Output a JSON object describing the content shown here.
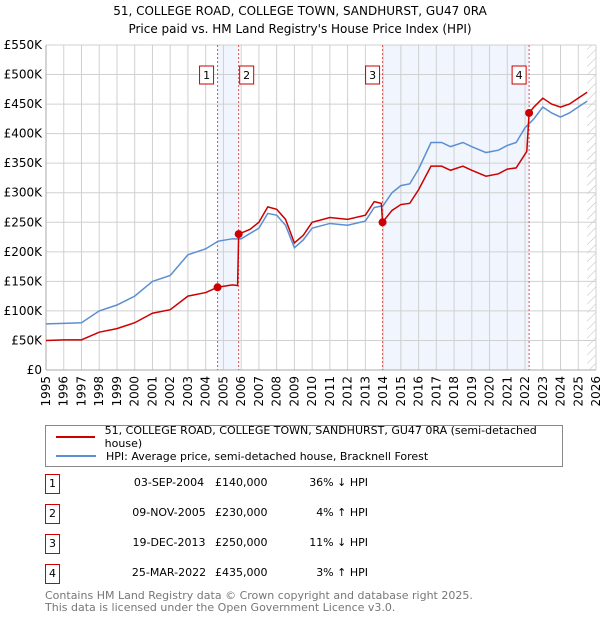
{
  "chart_data": {
    "type": "line",
    "title": "51, COLLEGE ROAD, COLLEGE TOWN, SANDHURST, GU47 0RA",
    "subtitle": "Price paid vs. HM Land Registry's House Price Index (HPI)",
    "xlim": [
      1995,
      2026
    ],
    "ylim": [
      0,
      550000
    ],
    "x_ticks": [
      "1995",
      "1996",
      "1997",
      "1998",
      "1999",
      "2000",
      "2001",
      "2002",
      "2003",
      "2004",
      "2005",
      "2006",
      "2007",
      "2008",
      "2009",
      "2010",
      "2011",
      "2012",
      "2013",
      "2014",
      "2015",
      "2016",
      "2017",
      "2018",
      "2019",
      "2020",
      "2021",
      "2022",
      "2023",
      "2024",
      "2025",
      "2026"
    ],
    "y_ticks": [
      {
        "v": 0,
        "label": "£0"
      },
      {
        "v": 50000,
        "label": "£50K"
      },
      {
        "v": 100000,
        "label": "£100K"
      },
      {
        "v": 150000,
        "label": "£150K"
      },
      {
        "v": 200000,
        "label": "£200K"
      },
      {
        "v": 250000,
        "label": "£250K"
      },
      {
        "v": 300000,
        "label": "£300K"
      },
      {
        "v": 350000,
        "label": "£350K"
      },
      {
        "v": 400000,
        "label": "£400K"
      },
      {
        "v": 450000,
        "label": "£450K"
      },
      {
        "v": 500000,
        "label": "£500K"
      },
      {
        "v": 550000,
        "label": "£550K"
      }
    ],
    "grid": true,
    "shaded_ranges": [
      [
        2004.67,
        2005.86
      ],
      [
        2013.97,
        2022.23
      ]
    ],
    "forecast_hatch_from": 2025.5,
    "series": [
      {
        "name": "51, COLLEGE ROAD, COLLEGE TOWN, SANDHURST, GU47 0RA (semi-detached house)",
        "color": "#cc0000",
        "points": [
          [
            1995,
            50000
          ],
          [
            1996,
            51000
          ],
          [
            1997,
            51000
          ],
          [
            1998,
            64000
          ],
          [
            1999,
            70000
          ],
          [
            2000,
            80000
          ],
          [
            2001,
            96000
          ],
          [
            2002,
            102000
          ],
          [
            2003,
            125000
          ],
          [
            2004,
            131000
          ],
          [
            2004.67,
            140000
          ],
          [
            2005.5,
            144000
          ],
          [
            2005.8,
            143000
          ],
          [
            2005.86,
            230000
          ],
          [
            2006.5,
            238000
          ],
          [
            2007,
            250000
          ],
          [
            2007.5,
            276000
          ],
          [
            2008,
            272000
          ],
          [
            2008.5,
            255000
          ],
          [
            2009,
            215000
          ],
          [
            2009.5,
            228000
          ],
          [
            2010,
            250000
          ],
          [
            2011,
            258000
          ],
          [
            2012,
            255000
          ],
          [
            2013,
            262000
          ],
          [
            2013.5,
            285000
          ],
          [
            2013.9,
            282000
          ],
          [
            2013.97,
            250000
          ],
          [
            2014.5,
            270000
          ],
          [
            2015,
            280000
          ],
          [
            2015.5,
            282000
          ],
          [
            2016,
            305000
          ],
          [
            2016.7,
            345000
          ],
          [
            2017.3,
            345000
          ],
          [
            2017.8,
            338000
          ],
          [
            2018.5,
            345000
          ],
          [
            2019,
            338000
          ],
          [
            2019.8,
            328000
          ],
          [
            2020.5,
            332000
          ],
          [
            2021,
            340000
          ],
          [
            2021.5,
            342000
          ],
          [
            2022.1,
            370000
          ],
          [
            2022.23,
            435000
          ],
          [
            2022.5,
            445000
          ],
          [
            2023,
            460000
          ],
          [
            2023.5,
            450000
          ],
          [
            2024,
            445000
          ],
          [
            2024.5,
            450000
          ],
          [
            2025,
            460000
          ],
          [
            2025.5,
            470000
          ]
        ]
      },
      {
        "name": "HPI: Average price, semi-detached house, Bracknell Forest",
        "color": "#5b8fd4",
        "points": [
          [
            1995,
            78000
          ],
          [
            1996,
            79000
          ],
          [
            1997,
            80000
          ],
          [
            1998,
            100000
          ],
          [
            1999,
            110000
          ],
          [
            2000,
            125000
          ],
          [
            2001,
            150000
          ],
          [
            2002,
            160000
          ],
          [
            2003,
            195000
          ],
          [
            2004,
            205000
          ],
          [
            2004.7,
            218000
          ],
          [
            2005.5,
            222000
          ],
          [
            2006,
            222000
          ],
          [
            2007,
            240000
          ],
          [
            2007.5,
            265000
          ],
          [
            2008,
            262000
          ],
          [
            2008.5,
            245000
          ],
          [
            2009,
            207000
          ],
          [
            2009.5,
            220000
          ],
          [
            2010,
            240000
          ],
          [
            2011,
            248000
          ],
          [
            2012,
            245000
          ],
          [
            2013,
            252000
          ],
          [
            2013.5,
            275000
          ],
          [
            2014,
            278000
          ],
          [
            2014.5,
            300000
          ],
          [
            2015,
            312000
          ],
          [
            2015.5,
            315000
          ],
          [
            2016,
            340000
          ],
          [
            2016.7,
            385000
          ],
          [
            2017.3,
            385000
          ],
          [
            2017.8,
            378000
          ],
          [
            2018.5,
            385000
          ],
          [
            2019,
            378000
          ],
          [
            2019.8,
            368000
          ],
          [
            2020.5,
            372000
          ],
          [
            2021,
            380000
          ],
          [
            2021.5,
            385000
          ],
          [
            2022,
            410000
          ],
          [
            2022.5,
            425000
          ],
          [
            2023,
            445000
          ],
          [
            2023.5,
            435000
          ],
          [
            2024,
            428000
          ],
          [
            2024.5,
            435000
          ],
          [
            2025,
            445000
          ],
          [
            2025.5,
            455000
          ]
        ]
      }
    ],
    "sales": [
      {
        "id": "1",
        "x": 2004.67,
        "y": 140000
      },
      {
        "id": "2",
        "x": 2005.86,
        "y": 230000
      },
      {
        "id": "3",
        "x": 2013.97,
        "y": 250000
      },
      {
        "id": "4",
        "x": 2022.23,
        "y": 435000
      }
    ]
  },
  "legend": {
    "red": "51, COLLEGE ROAD, COLLEGE TOWN, SANDHURST, GU47 0RA (semi-detached house)",
    "blue": "HPI: Average price, semi-detached house, Bracknell Forest"
  },
  "transactions": [
    {
      "id": "1",
      "date": "03-SEP-2004",
      "price": "£140,000",
      "hpi": "36% ↓ HPI"
    },
    {
      "id": "2",
      "date": "09-NOV-2005",
      "price": "£230,000",
      "hpi": "4% ↑ HPI"
    },
    {
      "id": "3",
      "date": "19-DEC-2013",
      "price": "£250,000",
      "hpi": "11% ↓ HPI"
    },
    {
      "id": "4",
      "date": "25-MAR-2022",
      "price": "£435,000",
      "hpi": "3% ↑ HPI"
    }
  ],
  "footer": {
    "line1": "Contains HM Land Registry data © Crown copyright and database right 2025.",
    "line2": "This data is licensed under the Open Government Licence v3.0."
  }
}
